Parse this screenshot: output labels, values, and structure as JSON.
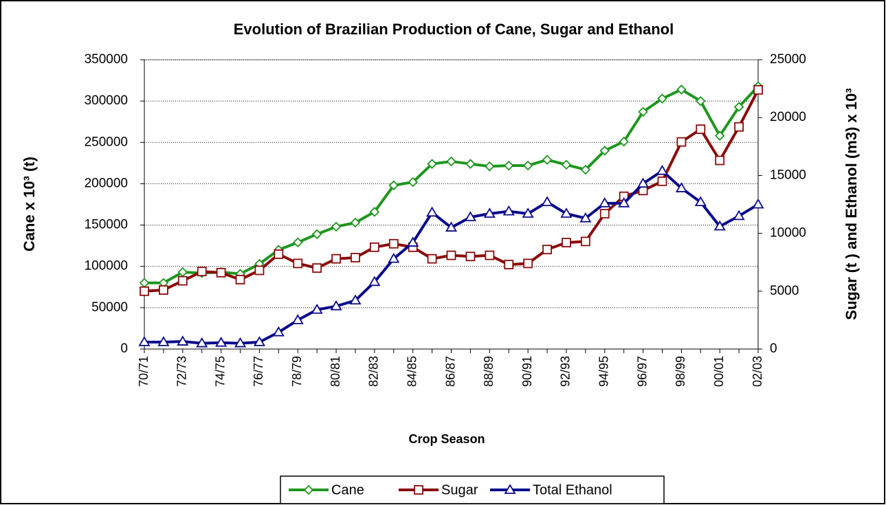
{
  "chart_data": {
    "type": "line",
    "title": "Evolution of Brazilian Production of Cane, Sugar and Ethanol",
    "xlabel": "Crop Season",
    "ylabel": "Cane x 10³ (t)",
    "y2label": "Sugar (t ) and Ethanol  (m3) x 10³",
    "categories": [
      "70/71",
      null,
      "72/73",
      null,
      "74/75",
      null,
      "76/77",
      null,
      "78/79",
      null,
      "80/81",
      null,
      "82/83",
      null,
      "84/85",
      null,
      "86/87",
      null,
      "88/89",
      null,
      "90/91",
      null,
      "92/93",
      null,
      "94/95",
      null,
      "96/97",
      null,
      "98/99",
      null,
      "00/01",
      null,
      "02/03"
    ],
    "ylim": [
      0,
      350000
    ],
    "yticks": [
      0,
      50000,
      100000,
      150000,
      200000,
      250000,
      300000,
      350000
    ],
    "y2lim": [
      0,
      25000
    ],
    "y2ticks": [
      0,
      5000,
      10000,
      15000,
      20000,
      25000
    ],
    "grid": true,
    "legend": "bottom",
    "series": [
      {
        "name": "Cane",
        "color": "#1e961e",
        "marker": "diamond",
        "values": [
          80000,
          80000,
          93000,
          92000,
          93000,
          91000,
          103000,
          120000,
          129000,
          139000,
          148000,
          153000,
          166000,
          198000,
          202000,
          224000,
          227000,
          224000,
          221000,
          222000,
          222000,
          229000,
          223000,
          217000,
          240000,
          251000,
          287000,
          303000,
          314000,
          300000,
          258000,
          293000,
          318000
        ]
      },
      {
        "name": "Sugar",
        "color": "#8b0a0a",
        "marker": "square",
        "axis": "y2",
        "values": [
          5000,
          5100,
          5900,
          6700,
          6600,
          6000,
          6800,
          8200,
          7400,
          7000,
          7800,
          7900,
          8800,
          9100,
          8800,
          7800,
          8100,
          8000,
          8100,
          7300,
          7400,
          8600,
          9200,
          9300,
          11700,
          13200,
          13700,
          14500,
          17900,
          19000,
          16300,
          19200,
          22400
        ]
      },
      {
        "name": "Total Ethanol",
        "color": "#0a0a8c",
        "marker": "triangle",
        "axis": "y2",
        "values": [
          600,
          600,
          650,
          500,
          550,
          500,
          600,
          1450,
          2500,
          3400,
          3700,
          4200,
          5800,
          7800,
          9200,
          11800,
          10500,
          11400,
          11700,
          11900,
          11700,
          12700,
          11700,
          11300,
          12600,
          12600,
          14300,
          15400,
          13900,
          12700,
          10600,
          11500,
          12500
        ]
      }
    ]
  }
}
